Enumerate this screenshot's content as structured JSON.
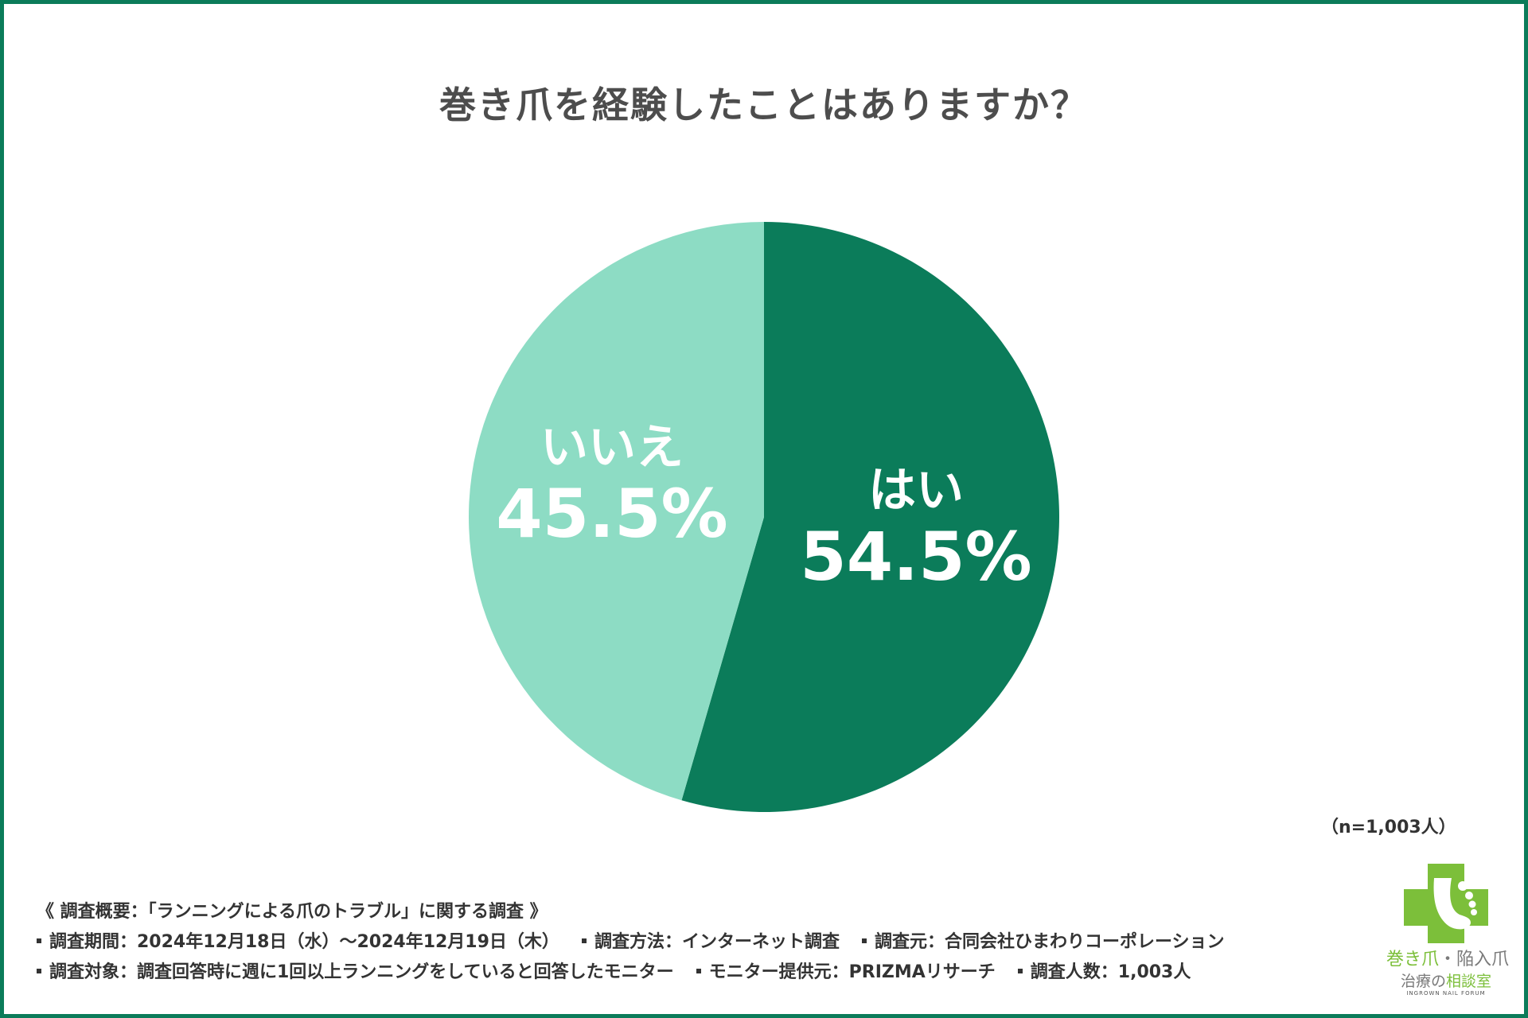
{
  "title": "巻き爪を経験したことはありますか？",
  "chart_data": {
    "type": "pie",
    "slices": [
      {
        "label": "はい",
        "value": 54.5,
        "value_label": "54.5%",
        "color": "#0b7c5a"
      },
      {
        "label": "いいえ",
        "value": 45.5,
        "value_label": "45.5%",
        "color": "#8ddcc4"
      }
    ],
    "start": "12 o'clock",
    "direction": "clockwise",
    "legend": "none"
  },
  "n_note": "（n=1,003人）",
  "survey": {
    "heading": "《 調査概要：「ランニングによる爪のトラブル」に関する調査 》",
    "period": "調査期間：2024年12月18日（水）～2024年12月19日（木）",
    "method": "調査方法：インターネット調査",
    "source": "調査元：合同会社ひまわりコーポレーション",
    "target": "調査対象：調査回答時に週に1回以上ランニングをしていると回答したモニター",
    "provider": "モニター提供元：PRIZMAリサーチ",
    "count": "調査人数：1,003人"
  },
  "logo": {
    "line1_a": "巻き爪",
    "line1_b": "・陥入爪",
    "line2_a": "治療の",
    "line2_b": "相談室",
    "english": "INGROWN NAIL FORUM",
    "icon": "foot-cross-icon",
    "colors": {
      "green": "#7cbf3a",
      "gray": "#7a7a7a"
    }
  },
  "colors": {
    "frame": "#0b7c5a",
    "title_text": "#4d4d4d"
  }
}
